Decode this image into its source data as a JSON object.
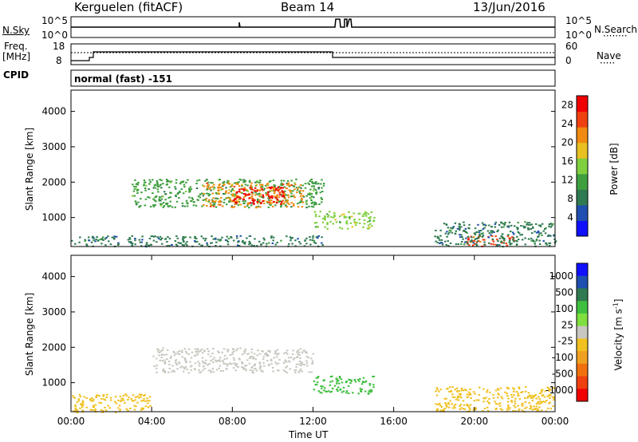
{
  "header": {
    "station": "Kerguelen (fitACF)",
    "beam": "Beam 14",
    "date": "13/Jun/2016"
  },
  "top_panels": {
    "nsky_label": "N.Sky",
    "nsky_ticks": [
      "10^5",
      "10^0"
    ],
    "nsearch_label": "N.Search",
    "nsearch_ticks": [
      "10^5",
      "10^0"
    ],
    "freq_label": "Freq.",
    "freq_unit": "[MHz]",
    "freq_ticks": [
      "18",
      "8"
    ],
    "nave_label": "Nave",
    "nave_ticks": [
      "60",
      "0"
    ],
    "cpid_label": "CPID",
    "cpid_value": "normal (fast) -151"
  },
  "colors": {
    "power_scale": [
      "#1010ff",
      "#1f4fb0",
      "#2f7a50",
      "#3f9f3f",
      "#7fcf3f",
      "#e8c020",
      "#f08a10",
      "#f04010",
      "#f00000"
    ],
    "velocity_scale": [
      "#1010ff",
      "#1f4fb0",
      "#2f7a50",
      "#3fbf3f",
      "#7fdf3f",
      "#c8c8c0",
      "#f0c020",
      "#f0a020",
      "#f07010",
      "#f04010",
      "#f00000"
    ]
  },
  "chart_data": [
    {
      "type": "heatmap",
      "quantity": "Power",
      "ylabel": "Slant Range [km]",
      "ylim": [
        180,
        4600
      ],
      "y_ticks": [
        1000,
        2000,
        3000,
        4000
      ],
      "colorbar_label": "Power [dB]",
      "colorbar_ticks": [
        "4",
        "8",
        "12",
        "16",
        "20",
        "24",
        "28"
      ],
      "colorbar_range": [
        0,
        30
      ],
      "regions": [
        {
          "t_start": 0.0,
          "t_end": 12.5,
          "r_min": 200,
          "r_max": 500,
          "value": 8
        },
        {
          "t_start": 3.0,
          "t_end": 12.5,
          "r_min": 1300,
          "r_max": 2100,
          "value": 12
        },
        {
          "t_start": 6.5,
          "t_end": 11.5,
          "r_min": 1300,
          "r_max": 2000,
          "value": 22
        },
        {
          "t_start": 8.0,
          "t_end": 10.5,
          "r_min": 1400,
          "r_max": 1900,
          "value": 27
        },
        {
          "t_start": 12.0,
          "t_end": 15.0,
          "r_min": 700,
          "r_max": 1200,
          "value": 14
        },
        {
          "t_start": 19.5,
          "t_end": 22.0,
          "r_min": 200,
          "r_max": 500,
          "value": 24
        },
        {
          "t_start": 18.0,
          "t_end": 24.0,
          "r_min": 200,
          "r_max": 900,
          "value": 8
        }
      ]
    },
    {
      "type": "heatmap",
      "quantity": "Velocity",
      "xlabel": "Time UT",
      "ylabel": "Slant Range [km]",
      "x_ticks": [
        "00:00",
        "04:00",
        "08:00",
        "12:00",
        "16:00",
        "20:00",
        "00:00"
      ],
      "xlim": [
        0,
        24
      ],
      "ylim": [
        180,
        4600
      ],
      "y_ticks": [
        1000,
        2000,
        3000,
        4000
      ],
      "colorbar_label": "Velocity [m s",
      "colorbar_label_exponent": "-1",
      "colorbar_label_end": "]",
      "colorbar_ticks": [
        "1000",
        "500",
        "100",
        "25",
        "-25",
        "-100",
        "-500",
        "-1000"
      ],
      "regions": [
        {
          "t_start": 0.0,
          "t_end": 4.0,
          "r_min": 180,
          "r_max": 700,
          "value": -100
        },
        {
          "t_start": 4.0,
          "t_end": 12.0,
          "r_min": 1300,
          "r_max": 2000,
          "value": 0
        },
        {
          "t_start": 12.0,
          "t_end": 15.0,
          "r_min": 700,
          "r_max": 1200,
          "value": 100
        },
        {
          "t_start": 18.0,
          "t_end": 24.0,
          "r_min": 200,
          "r_max": 900,
          "value": -100
        }
      ]
    }
  ]
}
